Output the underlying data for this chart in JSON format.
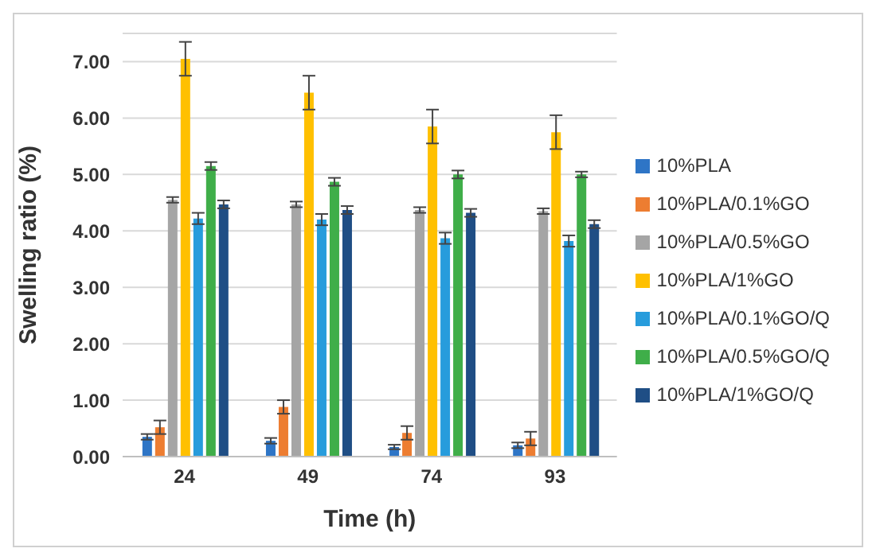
{
  "chart_data": {
    "type": "bar",
    "xlabel": "Time (h)",
    "ylabel": "Swelling ratio (%)",
    "categories": [
      "24",
      "49",
      "74",
      "93"
    ],
    "series": [
      {
        "name": "10%PLA",
        "color": "#2e75c6",
        "values": [
          0.35,
          0.28,
          0.17,
          0.2
        ],
        "errors": [
          0.05,
          0.05,
          0.04,
          0.05
        ]
      },
      {
        "name": "10%PLA/0.1%GO",
        "color": "#ed7d31",
        "values": [
          0.52,
          0.88,
          0.42,
          0.32
        ],
        "errors": [
          0.12,
          0.12,
          0.12,
          0.12
        ]
      },
      {
        "name": "10%PLA/0.5%GO",
        "color": "#a5a5a5",
        "values": [
          4.55,
          4.47,
          4.37,
          4.35
        ],
        "errors": [
          0.05,
          0.05,
          0.05,
          0.05
        ]
      },
      {
        "name": "10%PLA/1%GO",
        "color": "#ffc000",
        "values": [
          7.05,
          6.45,
          5.85,
          5.75
        ],
        "errors": [
          0.3,
          0.3,
          0.3,
          0.3
        ]
      },
      {
        "name": "10%PLA/0.1%GO/Q",
        "color": "#279cdc",
        "values": [
          4.22,
          4.2,
          3.87,
          3.82
        ],
        "errors": [
          0.1,
          0.1,
          0.1,
          0.1
        ]
      },
      {
        "name": "10%PLA/0.5%GO/Q",
        "color": "#3fae49",
        "values": [
          5.15,
          4.87,
          5.0,
          5.0
        ],
        "errors": [
          0.07,
          0.07,
          0.07,
          0.05
        ]
      },
      {
        "name": "10%PLA/1%GO/Q",
        "color": "#1f4e85",
        "values": [
          4.47,
          4.37,
          4.32,
          4.12
        ],
        "errors": [
          0.07,
          0.07,
          0.07,
          0.07
        ]
      }
    ],
    "ylim": [
      0,
      7.5
    ],
    "yticks": [
      {
        "value": 0,
        "label": "0.00"
      },
      {
        "value": 1,
        "label": "1.00"
      },
      {
        "value": 2,
        "label": "2.00"
      },
      {
        "value": 3,
        "label": "3.00"
      },
      {
        "value": 4,
        "label": "4.00"
      },
      {
        "value": 5,
        "label": "5.00"
      },
      {
        "value": 6,
        "label": "6.00"
      },
      {
        "value": 7,
        "label": "7.00"
      }
    ],
    "grid": "y",
    "legend": "right"
  }
}
